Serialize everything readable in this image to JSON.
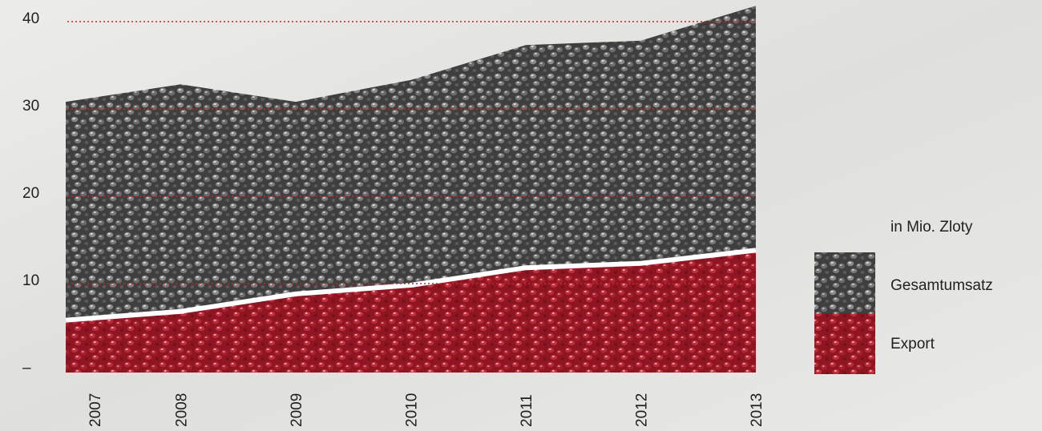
{
  "chart_data": {
    "type": "area",
    "title": "",
    "unit_note": "in Mio. Zloty",
    "categories": [
      "2007",
      "2008",
      "2009",
      "2010",
      "2011",
      "2012",
      "2013"
    ],
    "series": [
      {
        "name": "Gesamtumsatz",
        "values": [
          31,
          33,
          31,
          33.5,
          37.5,
          38,
          42
        ],
        "color": "#4a4a4a"
      },
      {
        "name": "Export",
        "values": [
          6,
          7,
          9,
          10,
          12,
          12.5,
          14
        ],
        "color": "#a01e2a"
      }
    ],
    "y_ticks": [
      "–",
      "10",
      "20",
      "30",
      "40"
    ],
    "ylim": [
      0,
      40
    ],
    "grid": true,
    "grid_style": "red dotted",
    "legend_position": "right"
  }
}
